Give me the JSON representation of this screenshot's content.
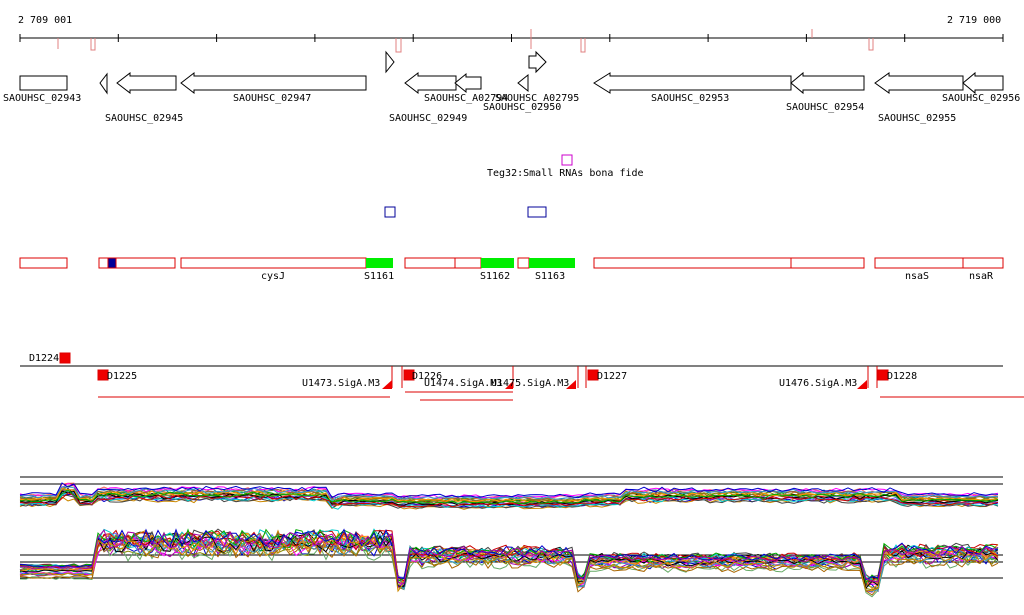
{
  "coords": {
    "start": "2 709 001",
    "end": "2 719 000"
  },
  "genes": [
    {
      "id": "SAOUHSC_02943",
      "dir": "+"
    },
    {
      "id": "SAOUHSC_02945",
      "dir": "-"
    },
    {
      "id": "SAOUHSC_02947",
      "dir": "-"
    },
    {
      "id": "SAOUHSC_02949",
      "dir": "+"
    },
    {
      "id": "SAOUHSC_A02794",
      "dir": "-"
    },
    {
      "id": "SAOUHSC_02950",
      "dir": "-"
    },
    {
      "id": "SAOUHSC_A02795",
      "dir": "+"
    },
    {
      "id": "SAOUHSC_02953",
      "dir": "-"
    },
    {
      "id": "SAOUHSC_02954",
      "dir": "-"
    },
    {
      "id": "SAOUHSC_02955",
      "dir": "-"
    },
    {
      "id": "SAOUHSC_02956",
      "dir": "-"
    }
  ],
  "srna": {
    "label": "Teg32:Small RNAs bona fide"
  },
  "transcripts": [
    {
      "label": ""
    },
    {
      "label": ""
    },
    {
      "label": "cysJ"
    },
    {
      "label": "S1161"
    },
    {
      "label": ""
    },
    {
      "label": "S1162"
    },
    {
      "label": "S1163"
    },
    {
      "label": ""
    },
    {
      "label": "nsaS"
    },
    {
      "label": "nsaR"
    }
  ],
  "promoters": [
    "D1224",
    "D1225",
    "D1226",
    "D1227",
    "D1228"
  ],
  "sigma": [
    "U1473.SigA.M3",
    "U1474.SigA.M3",
    "U1475.SigA.M3",
    "U1476.SigA.M3"
  ],
  "colors": {
    "axis": "#000000",
    "tick_marker": "#e08080",
    "feature_red": "#dd0000",
    "highlight_green": "#00ee00",
    "srna_magenta": "#cc00cc",
    "box_blue": "#000099"
  }
}
